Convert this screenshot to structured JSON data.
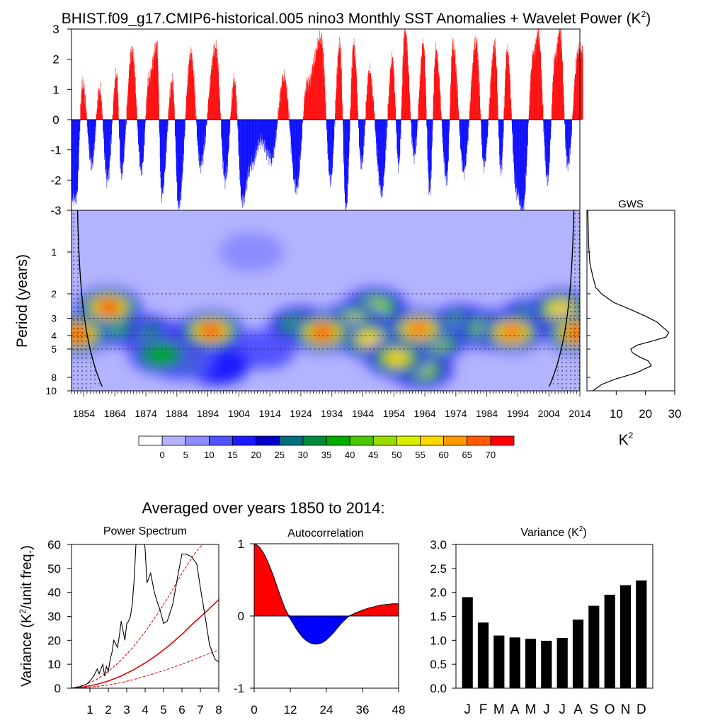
{
  "figure": {
    "title_main": "BHIST.f09_g17.CMIP6-historical.005 nino3 Monthly SST Anomalies + Wavelet Power (K",
    "title_sup": "2",
    "title_end": ")",
    "section_title": "Averaged over years 1850 to 2014:"
  },
  "colors": {
    "positive": "#ff0000",
    "negative": "#0000ff",
    "background_power": "#b3b3ff",
    "curve": "#000000",
    "red_line": "#dd0000"
  },
  "chart_data": [
    {
      "id": "sst_anomalies",
      "type": "bar",
      "title": "nino3 Monthly SST Anomalies",
      "ylim": [
        -3,
        3
      ],
      "yticks": [
        "3",
        "2",
        "1",
        "0",
        "-1",
        "-2",
        "-3"
      ],
      "x_range": [
        1850,
        2014
      ],
      "positive_color": "#ff0000",
      "negative_color": "#0000ff",
      "peaks": [
        {
          "year": 1851.5,
          "value": -2.6
        },
        {
          "year": 1853.5,
          "value": 1.2
        },
        {
          "year": 1856.5,
          "value": -1.5
        },
        {
          "year": 1859.0,
          "value": 1.0
        },
        {
          "year": 1861.5,
          "value": -2.0
        },
        {
          "year": 1864.5,
          "value": 1.5
        },
        {
          "year": 1866.0,
          "value": -1.8
        },
        {
          "year": 1869.5,
          "value": 2.3
        },
        {
          "year": 1872.5,
          "value": -1.7
        },
        {
          "year": 1875.0,
          "value": 1.4
        },
        {
          "year": 1877.5,
          "value": 2.5
        },
        {
          "year": 1879.0,
          "value": -2.5
        },
        {
          "year": 1882.5,
          "value": 1.3
        },
        {
          "year": 1884.5,
          "value": -2.9
        },
        {
          "year": 1888.5,
          "value": 2.2
        },
        {
          "year": 1891.5,
          "value": -1.5
        },
        {
          "year": 1896.5,
          "value": 2.4
        },
        {
          "year": 1899.5,
          "value": -2.0
        },
        {
          "year": 1902.5,
          "value": 1.3
        },
        {
          "year": 1905.0,
          "value": -2.7
        },
        {
          "year": 1908.0,
          "value": -1.5
        },
        {
          "year": 1911.0,
          "value": -0.7
        },
        {
          "year": 1914.5,
          "value": -1.3
        },
        {
          "year": 1918.5,
          "value": 1.4
        },
        {
          "year": 1922.5,
          "value": -2.3
        },
        {
          "year": 1926.0,
          "value": 1.2
        },
        {
          "year": 1930.5,
          "value": 2.7
        },
        {
          "year": 1933.5,
          "value": -2.0
        },
        {
          "year": 1936.5,
          "value": 2.5
        },
        {
          "year": 1938.5,
          "value": -3.0
        },
        {
          "year": 1941.0,
          "value": 2.5
        },
        {
          "year": 1943.5,
          "value": -1.5
        },
        {
          "year": 1946.0,
          "value": 1.6
        },
        {
          "year": 1950.0,
          "value": -2.4
        },
        {
          "year": 1953.5,
          "value": 2.0
        },
        {
          "year": 1955.5,
          "value": -1.5
        },
        {
          "year": 1957.5,
          "value": 3.0
        },
        {
          "year": 1960.5,
          "value": -1.2
        },
        {
          "year": 1963.5,
          "value": 2.5
        },
        {
          "year": 1965.5,
          "value": -2.4
        },
        {
          "year": 1967.5,
          "value": 2.3
        },
        {
          "year": 1971.0,
          "value": -2.0
        },
        {
          "year": 1973.0,
          "value": 2.5
        },
        {
          "year": 1976.5,
          "value": -1.7
        },
        {
          "year": 1980.5,
          "value": 2.6
        },
        {
          "year": 1983.0,
          "value": -1.5
        },
        {
          "year": 1986.5,
          "value": 2.5
        },
        {
          "year": 1988.5,
          "value": -1.7
        },
        {
          "year": 1990.5,
          "value": 2.3
        },
        {
          "year": 1993.5,
          "value": -2.4
        },
        {
          "year": 1995.5,
          "value": -3.0
        },
        {
          "year": 1999.0,
          "value": 2.2
        },
        {
          "year": 2000.5,
          "value": 2.9
        },
        {
          "year": 2003.5,
          "value": -2.0
        },
        {
          "year": 2006.0,
          "value": 2.1
        },
        {
          "year": 2007.5,
          "value": 3.0
        },
        {
          "year": 2010.0,
          "value": -1.5
        },
        {
          "year": 2013.5,
          "value": 2.3
        }
      ]
    },
    {
      "id": "wavelet_power",
      "type": "heatmap",
      "ylabel": "Period (years)",
      "y_ticks": [
        "1",
        "2",
        "3",
        "4",
        "5",
        "8",
        "10"
      ],
      "y_tick_values": [
        1,
        2,
        3,
        4,
        5,
        8,
        10
      ],
      "y_range": [
        0.5,
        10
      ],
      "x_range": [
        1850,
        2014
      ],
      "x_ticks": [
        "1854",
        "1864",
        "1874",
        "1884",
        "1894",
        "1904",
        "1914",
        "1924",
        "1934",
        "1944",
        "1954",
        "1964",
        "1974",
        "1984",
        "1994",
        "2004",
        "2014"
      ],
      "x_tick_values": [
        1854,
        1864,
        1874,
        1884,
        1894,
        1904,
        1914,
        1924,
        1934,
        1944,
        1954,
        1964,
        1974,
        1984,
        1994,
        2004,
        2014
      ],
      "dashed_periods": [
        2,
        3,
        4,
        5
      ],
      "levels": [
        0,
        5,
        10,
        15,
        20,
        25,
        30,
        35,
        40,
        45,
        50,
        55,
        60,
        65,
        70
      ],
      "palette": [
        "#ffffff",
        "#b3b3ff",
        "#8c8cff",
        "#5252ff",
        "#1a1aff",
        "#0000c8",
        "#006f7f",
        "#008a3c",
        "#00aa00",
        "#4cc700",
        "#9bdd00",
        "#d9ee00",
        "#ffd700",
        "#ff9900",
        "#ff5a00",
        "#ff0000"
      ],
      "blobs": [
        {
          "year": 1852,
          "period": 3.9,
          "power": 72
        },
        {
          "year": 1862,
          "period": 2.5,
          "power": 70
        },
        {
          "year": 1863,
          "period": 3.4,
          "power": 40
        },
        {
          "year": 1879,
          "period": 5.5,
          "power": 38
        },
        {
          "year": 1874,
          "period": 3.9,
          "power": 30
        },
        {
          "year": 1889,
          "period": 4.2,
          "power": 32
        },
        {
          "year": 1885,
          "period": 6.0,
          "power": 26
        },
        {
          "year": 1895,
          "period": 3.7,
          "power": 72
        },
        {
          "year": 1897,
          "period": 6.5,
          "power": 16
        },
        {
          "year": 1931,
          "period": 3.8,
          "power": 72
        },
        {
          "year": 1924,
          "period": 3.4,
          "power": 42
        },
        {
          "year": 1941,
          "period": 3.2,
          "power": 52
        },
        {
          "year": 1948,
          "period": 2.5,
          "power": 48
        },
        {
          "year": 1946,
          "period": 4.2,
          "power": 55
        },
        {
          "year": 1955,
          "period": 5.8,
          "power": 55
        },
        {
          "year": 1962,
          "period": 3.6,
          "power": 68
        },
        {
          "year": 1967,
          "period": 4.4,
          "power": 50
        },
        {
          "year": 1963,
          "period": 7.0,
          "power": 45
        },
        {
          "year": 1976,
          "period": 3.3,
          "power": 40
        },
        {
          "year": 1984,
          "period": 3.6,
          "power": 48
        },
        {
          "year": 1992,
          "period": 3.8,
          "power": 68
        },
        {
          "year": 1998,
          "period": 3.0,
          "power": 40
        },
        {
          "year": 2008,
          "period": 2.6,
          "power": 58
        },
        {
          "year": 2013,
          "period": 3.8,
          "power": 72
        },
        {
          "year": 1912,
          "period": 5.0,
          "power": 10
        },
        {
          "year": 1908,
          "period": 1.0,
          "power": 8
        }
      ]
    },
    {
      "id": "global_wavelet_spectrum",
      "type": "line",
      "title": "GWS",
      "xlabel": "K",
      "xlabel_sup": "2",
      "x_ticks": [
        "10",
        "20",
        "30"
      ],
      "x_tick_values": [
        10,
        20,
        30
      ],
      "x_range": [
        0,
        30
      ],
      "y_range": [
        0.5,
        10
      ],
      "x": [
        0.3,
        0.6,
        1.0,
        2.0,
        3.0,
        5.0,
        9.0,
        15.0,
        20.0,
        24.0,
        26.0,
        28.0,
        27.0,
        22.0,
        17.0,
        15.0,
        15.5,
        18.0,
        21.0,
        22.0,
        17.0,
        10.0,
        5.0,
        2.0
      ],
      "y": [
        0.5,
        0.9,
        1.2,
        1.5,
        1.8,
        2.0,
        2.3,
        2.6,
        2.9,
        3.2,
        3.5,
        3.8,
        4.1,
        4.4,
        4.7,
        5.0,
        5.3,
        5.7,
        6.1,
        6.6,
        7.4,
        8.2,
        9.0,
        10.0
      ]
    },
    {
      "id": "colorbar",
      "type": "table",
      "labels": [
        "0",
        "5",
        "10",
        "15",
        "20",
        "25",
        "30",
        "35",
        "40",
        "45",
        "50",
        "55",
        "60",
        "65",
        "70"
      ]
    },
    {
      "id": "power_spectrum",
      "type": "line",
      "title": "Power Spectrum",
      "ylabel": "Variance (K",
      "ylabel_sup": "2",
      "ylabel_end": "/unit freq.)",
      "xlim": [
        0,
        8
      ],
      "ylim": [
        0,
        60
      ],
      "x_ticks": [
        "1",
        "2",
        "3",
        "4",
        "5",
        "6",
        "7",
        "8"
      ],
      "x_tick_values": [
        1,
        2,
        3,
        4,
        5,
        6,
        7,
        8
      ],
      "y_ticks": [
        "60",
        "50",
        "40",
        "30",
        "20",
        "10",
        "0"
      ],
      "y_tick_values": [
        60,
        50,
        40,
        30,
        20,
        10,
        0
      ],
      "x": [
        0,
        0.4,
        0.8,
        1.0,
        1.2,
        1.4,
        1.5,
        1.7,
        1.8,
        1.9,
        2.0,
        2.1,
        2.2,
        2.3,
        2.5,
        2.6,
        2.7,
        2.8,
        2.9,
        3.0,
        3.1,
        3.2,
        3.3,
        3.4,
        3.5,
        3.6,
        3.7,
        3.9,
        4.0,
        4.1,
        4.3,
        4.5,
        4.7,
        4.8,
        4.9,
        5.0,
        5.2,
        5.5,
        5.8,
        6.0,
        6.2,
        6.5,
        6.8,
        7.0,
        7.3,
        7.5,
        7.8,
        8.0
      ],
      "y": [
        0,
        0.5,
        1.5,
        3,
        5,
        8,
        6,
        10,
        5,
        9,
        7,
        12,
        15,
        20,
        17,
        22,
        28,
        24,
        20,
        27,
        28,
        30,
        35,
        45,
        60,
        65,
        65,
        65,
        58,
        44,
        48,
        40,
        35,
        33,
        30,
        27,
        28,
        35,
        48,
        56,
        56,
        55,
        52,
        42,
        28,
        18,
        12,
        11
      ],
      "red_mean": [
        0,
        0.5,
        1.5,
        3,
        5,
        7.5,
        10.5,
        14,
        18,
        22.5,
        27.5,
        32,
        37
      ],
      "red_upper": [
        0,
        1.2,
        3.5,
        7,
        11.5,
        17,
        23.5,
        31,
        39,
        48,
        56,
        62,
        66
      ],
      "red_lower": [
        0,
        0.2,
        0.7,
        1.3,
        2.3,
        3.5,
        5,
        6.5,
        8.2,
        10,
        12,
        14,
        16
      ],
      "red_x": [
        0,
        0.67,
        1.33,
        2.0,
        2.67,
        3.33,
        4.0,
        4.67,
        5.33,
        6.0,
        6.67,
        7.33,
        8.0
      ]
    },
    {
      "id": "autocorrelation",
      "type": "area",
      "title": "Autocorrelation",
      "xlim": [
        0,
        48
      ],
      "ylim": [
        -1,
        1
      ],
      "x_ticks": [
        "0",
        "12",
        "24",
        "36",
        "48"
      ],
      "x_tick_values": [
        0,
        12,
        24,
        36,
        48
      ],
      "y_ticks": [
        "1",
        "0",
        "-1"
      ],
      "y_tick_values": [
        1,
        0,
        -1
      ],
      "x": [
        0,
        1,
        2,
        3,
        4,
        5,
        6,
        7,
        8,
        9,
        10,
        11,
        12,
        13,
        14,
        15,
        16,
        17,
        18,
        19,
        20,
        21,
        22,
        23,
        24,
        25,
        26,
        27,
        28,
        29,
        30,
        31,
        32,
        33,
        34,
        36,
        38,
        40,
        42,
        44,
        46,
        48
      ],
      "y": [
        1.0,
        0.98,
        0.94,
        0.88,
        0.8,
        0.7,
        0.6,
        0.48,
        0.36,
        0.24,
        0.13,
        0.04,
        -0.04,
        -0.11,
        -0.18,
        -0.24,
        -0.29,
        -0.33,
        -0.36,
        -0.38,
        -0.39,
        -0.39,
        -0.38,
        -0.36,
        -0.33,
        -0.29,
        -0.25,
        -0.2,
        -0.15,
        -0.1,
        -0.06,
        -0.02,
        0.01,
        0.03,
        0.05,
        0.08,
        0.11,
        0.13,
        0.15,
        0.16,
        0.17,
        0.17
      ]
    },
    {
      "id": "monthly_variance",
      "type": "bar",
      "title": "Variance (K",
      "title_sup": "2",
      "title_end": ")",
      "categories": [
        "J",
        "F",
        "M",
        "A",
        "M",
        "J",
        "J",
        "A",
        "S",
        "O",
        "N",
        "D"
      ],
      "values": [
        1.9,
        1.37,
        1.1,
        1.06,
        1.03,
        0.99,
        1.05,
        1.43,
        1.72,
        1.95,
        2.15,
        2.25
      ],
      "ylim": [
        0,
        3
      ],
      "y_ticks": [
        "3.0",
        "2.5",
        "2.0",
        "1.5",
        "1.0",
        "0.5",
        "0.0"
      ],
      "y_tick_values": [
        3.0,
        2.5,
        2.0,
        1.5,
        1.0,
        0.5,
        0.0
      ]
    }
  ]
}
